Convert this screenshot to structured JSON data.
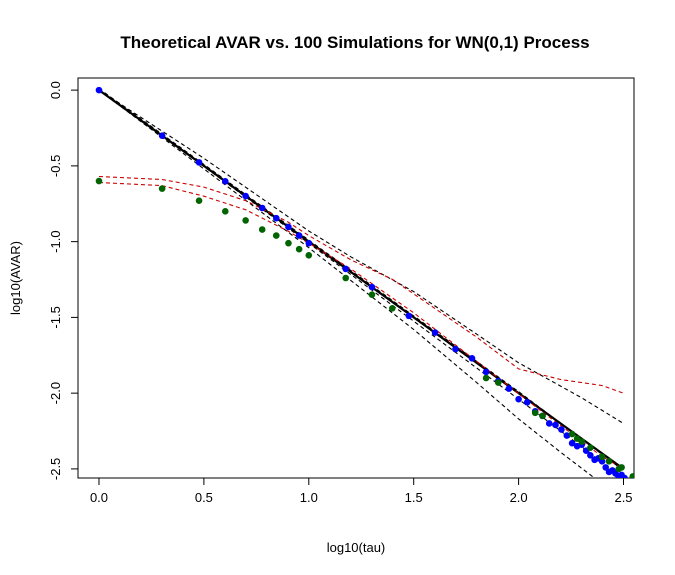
{
  "chart_data": {
    "type": "scatter",
    "title": "Theoretical AVAR vs. 100 Simulations for WN(0,1) Process",
    "xlabel": "log10(tau)",
    "ylabel": "log10(AVAR)",
    "xlim": [
      -0.1,
      2.55
    ],
    "ylim": [
      -2.56,
      0.08
    ],
    "x_ticks": [
      "0.0",
      "0.5",
      "1.0",
      "1.5",
      "2.0",
      "2.5"
    ],
    "x_tick_values": [
      0,
      0.5,
      1.0,
      1.5,
      2.0,
      2.5
    ],
    "y_ticks": [
      "0.0",
      "-0.5",
      "-1.0",
      "-1.5",
      "-2.0",
      "-2.5"
    ],
    "y_tick_values": [
      0,
      -0.5,
      -1.0,
      -1.5,
      -2.0,
      -2.5
    ],
    "grid": false,
    "legend": "none",
    "series": [
      {
        "style": "solid-line",
        "color": "#000000",
        "x": [
          0,
          2.5
        ],
        "y": [
          0,
          -2.5
        ]
      },
      {
        "style": "dashed-line",
        "color": "#000000",
        "x": [
          0,
          0.5,
          1.0,
          1.2,
          1.5,
          1.8,
          2.0,
          2.3,
          2.5
        ],
        "y": [
          0.0,
          -0.45,
          -0.93,
          -1.1,
          -1.33,
          -1.61,
          -1.8,
          -2.03,
          -2.2
        ]
      },
      {
        "style": "dashed-line",
        "color": "#000000",
        "x": [
          0,
          0.5,
          1.0,
          1.5,
          1.8,
          2.0,
          2.2,
          2.4
        ],
        "y": [
          0.0,
          -0.52,
          -1.04,
          -1.58,
          -1.93,
          -2.17,
          -2.39,
          -2.6
        ]
      },
      {
        "style": "dashed-line",
        "color": "#000000",
        "x": [
          0,
          0.5,
          1.0,
          1.5,
          2.0,
          2.45
        ],
        "y": [
          0.0,
          -0.505,
          -1.01,
          -1.525,
          -2.04,
          -2.51
        ]
      },
      {
        "style": "dashed-line",
        "color": "#000000",
        "x": [
          0,
          0.5,
          1.0,
          1.5,
          2.0,
          2.48
        ],
        "y": [
          0.01,
          -0.49,
          -0.99,
          -1.49,
          -1.99,
          -2.49
        ]
      },
      {
        "style": "dashed-line",
        "color": "#cc0000",
        "x": [
          0,
          0.3,
          0.5,
          0.7,
          0.9,
          1.0,
          1.2,
          1.4,
          1.6,
          1.8,
          2.0,
          2.2,
          2.4,
          2.5
        ],
        "y": [
          -0.57,
          -0.59,
          -0.64,
          -0.73,
          -0.87,
          -0.96,
          -1.12,
          -1.25,
          -1.44,
          -1.63,
          -1.84,
          -1.91,
          -1.95,
          -2.0
        ]
      },
      {
        "style": "dashed-line",
        "color": "#cc0000",
        "x": [
          0,
          0.3,
          0.5,
          0.7,
          0.9,
          1.0,
          1.2,
          1.5,
          1.8,
          2.1,
          2.4,
          2.5
        ],
        "y": [
          -0.61,
          -0.63,
          -0.7,
          -0.79,
          -0.93,
          -1.01,
          -1.18,
          -1.47,
          -1.79,
          -2.11,
          -2.42,
          -2.5
        ]
      },
      {
        "style": "points",
        "color": "#0000ff",
        "x": [
          0,
          0.301,
          0.477,
          0.602,
          0.699,
          0.778,
          0.845,
          0.903,
          0.954,
          1.0,
          1.176,
          1.301,
          1.477,
          1.602,
          1.699,
          1.778,
          1.845,
          1.903,
          1.954,
          2.0,
          2.041,
          2.079,
          2.114,
          2.146,
          2.176,
          2.204,
          2.23,
          2.255,
          2.279,
          2.301,
          2.322,
          2.342,
          2.362,
          2.38,
          2.398,
          2.415,
          2.431,
          2.447,
          2.462,
          2.477,
          2.491,
          2.505
        ],
        "y": [
          0,
          -0.301,
          -0.477,
          -0.602,
          -0.699,
          -0.778,
          -0.845,
          -0.903,
          -0.96,
          -1.01,
          -1.18,
          -1.3,
          -1.49,
          -1.6,
          -1.71,
          -1.77,
          -1.86,
          -1.92,
          -1.97,
          -2.04,
          -2.06,
          -2.12,
          -2.15,
          -2.2,
          -2.21,
          -2.24,
          -2.28,
          -2.33,
          -2.35,
          -2.34,
          -2.38,
          -2.41,
          -2.44,
          -2.43,
          -2.45,
          -2.49,
          -2.52,
          -2.51,
          -2.53,
          -2.55,
          -2.54,
          -2.56
        ]
      },
      {
        "style": "points",
        "color": "#006400",
        "x": [
          0,
          0.301,
          0.477,
          0.602,
          0.699,
          0.778,
          0.845,
          0.903,
          0.954,
          1.0,
          1.176,
          1.301,
          1.398,
          1.845,
          1.903,
          2.079,
          2.114,
          2.255,
          2.279,
          2.301,
          2.342,
          2.398,
          2.431,
          2.477,
          2.491,
          2.544
        ],
        "y": [
          -0.6,
          -0.65,
          -0.73,
          -0.8,
          -0.86,
          -0.92,
          -0.96,
          -1.01,
          -1.05,
          -1.09,
          -1.24,
          -1.35,
          -1.44,
          -1.9,
          -1.93,
          -2.13,
          -2.15,
          -2.27,
          -2.3,
          -2.32,
          -2.36,
          -2.42,
          -2.45,
          -2.5,
          -2.49,
          -2.55
        ]
      }
    ]
  }
}
